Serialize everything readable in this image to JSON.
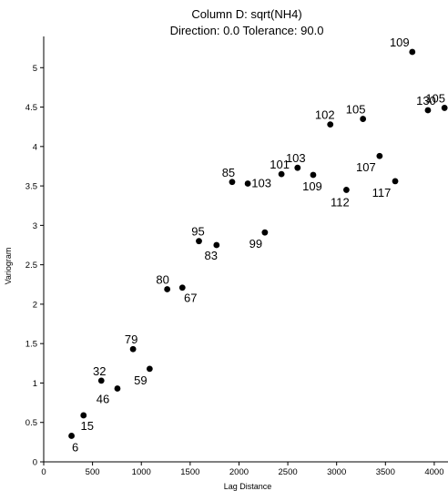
{
  "chart_data": {
    "type": "scatter",
    "title": "Column D:  sqrt(NH4)",
    "subtitle": "Direction: 0.0   Tolerance: 90.0",
    "xlabel": "Lag Distance",
    "ylabel": "Variogram",
    "xlim": [
      0,
      4150
    ],
    "ylim": [
      0,
      5.35
    ],
    "xticks": [
      0,
      500,
      1000,
      1500,
      2000,
      2500,
      3000,
      3500,
      4000
    ],
    "yticks": [
      0,
      0.5,
      1,
      1.5,
      2,
      2.5,
      3,
      3.5,
      4,
      4.5,
      5
    ],
    "ytick_labels": [
      "0",
      "0.5",
      "1",
      "1.5",
      "2",
      "2.5",
      "3",
      "3.5",
      "4",
      "4.5",
      "5"
    ],
    "grid": false,
    "points": [
      {
        "x": 285,
        "y": 0.33,
        "label": "6"
      },
      {
        "x": 408,
        "y": 0.59,
        "label": "15"
      },
      {
        "x": 590,
        "y": 1.03,
        "label": "32"
      },
      {
        "x": 755,
        "y": 0.93,
        "label": "46"
      },
      {
        "x": 915,
        "y": 1.43,
        "label": "79"
      },
      {
        "x": 1085,
        "y": 1.18,
        "label": "59"
      },
      {
        "x": 1265,
        "y": 2.19,
        "label": "80"
      },
      {
        "x": 1420,
        "y": 2.21,
        "label": "67"
      },
      {
        "x": 1590,
        "y": 2.8,
        "label": "95"
      },
      {
        "x": 1770,
        "y": 2.75,
        "label": "83"
      },
      {
        "x": 1930,
        "y": 3.55,
        "label": "85"
      },
      {
        "x": 2090,
        "y": 3.53,
        "label": "103"
      },
      {
        "x": 2265,
        "y": 2.91,
        "label": "99"
      },
      {
        "x": 2435,
        "y": 3.65,
        "label": "101"
      },
      {
        "x": 2600,
        "y": 3.73,
        "label": "103"
      },
      {
        "x": 2760,
        "y": 3.64,
        "label": "109"
      },
      {
        "x": 2935,
        "y": 4.28,
        "label": "102"
      },
      {
        "x": 3100,
        "y": 3.45,
        "label": "112"
      },
      {
        "x": 3270,
        "y": 4.35,
        "label": "105"
      },
      {
        "x": 3440,
        "y": 3.88,
        "label": "107"
      },
      {
        "x": 3600,
        "y": 3.56,
        "label": "117"
      },
      {
        "x": 3775,
        "y": 5.2,
        "label": "109"
      },
      {
        "x": 3935,
        "y": 4.46,
        "label": "130"
      },
      {
        "x": 4105,
        "y": 4.49,
        "label": "105"
      }
    ]
  }
}
